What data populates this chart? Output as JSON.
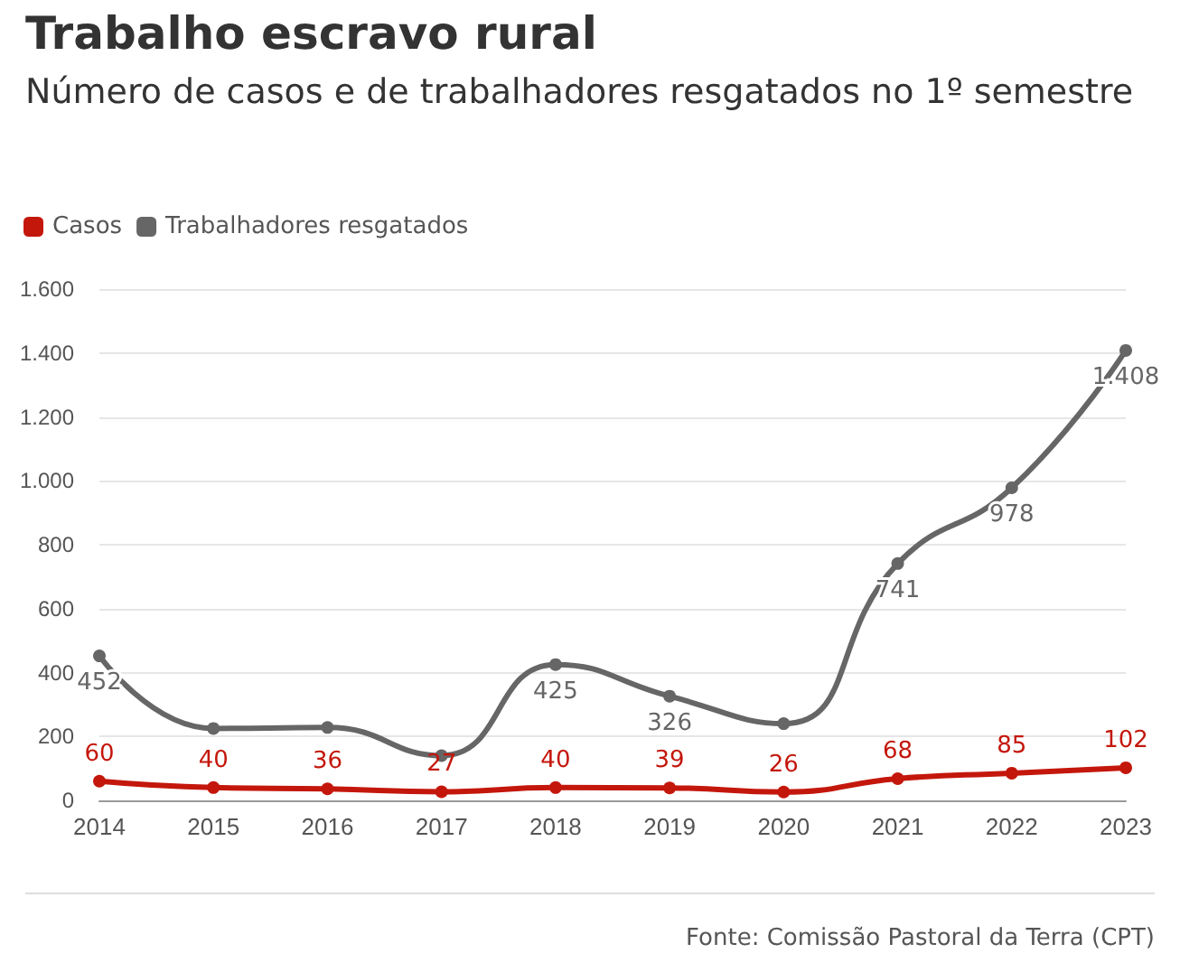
{
  "chart_data": {
    "type": "line",
    "title": "Trabalho escravo rural",
    "subtitle": "Número de casos e de trabalhadores resgatados no 1º semestre",
    "categories": [
      "2014",
      "2015",
      "2016",
      "2017",
      "2018",
      "2019",
      "2020",
      "2021",
      "2022",
      "2023"
    ],
    "series": [
      {
        "name": "Casos",
        "color": "#c4170c",
        "values": [
          60,
          40,
          36,
          27,
          40,
          39,
          26,
          68,
          85,
          102
        ],
        "value_labels": [
          "60",
          "40",
          "36",
          "27",
          "40",
          "39",
          "26",
          "68",
          "85",
          "102"
        ]
      },
      {
        "name": "Trabalhadores resgatados",
        "color": "#666666",
        "values": [
          452,
          225,
          228,
          140,
          425,
          326,
          240,
          741,
          978,
          1408
        ],
        "value_labels": [
          "452",
          null,
          null,
          null,
          "425",
          "326",
          null,
          "741",
          "978",
          "1.408"
        ]
      }
    ],
    "ylim": [
      0,
      1600
    ],
    "yticks": [
      0,
      200,
      400,
      600,
      800,
      {
        "value": 1000,
        "label": "1.000"
      },
      {
        "value": 1200,
        "label": "1.200"
      },
      {
        "value": 1400,
        "label": "1.400"
      },
      {
        "value": 1600,
        "label": "1.600"
      }
    ],
    "grid": "y",
    "legend": "top left",
    "marker": "circle",
    "line_style": "solid",
    "annotations": [
      "Fonte: Comissão Pastoral da Terra (CPT)"
    ]
  }
}
